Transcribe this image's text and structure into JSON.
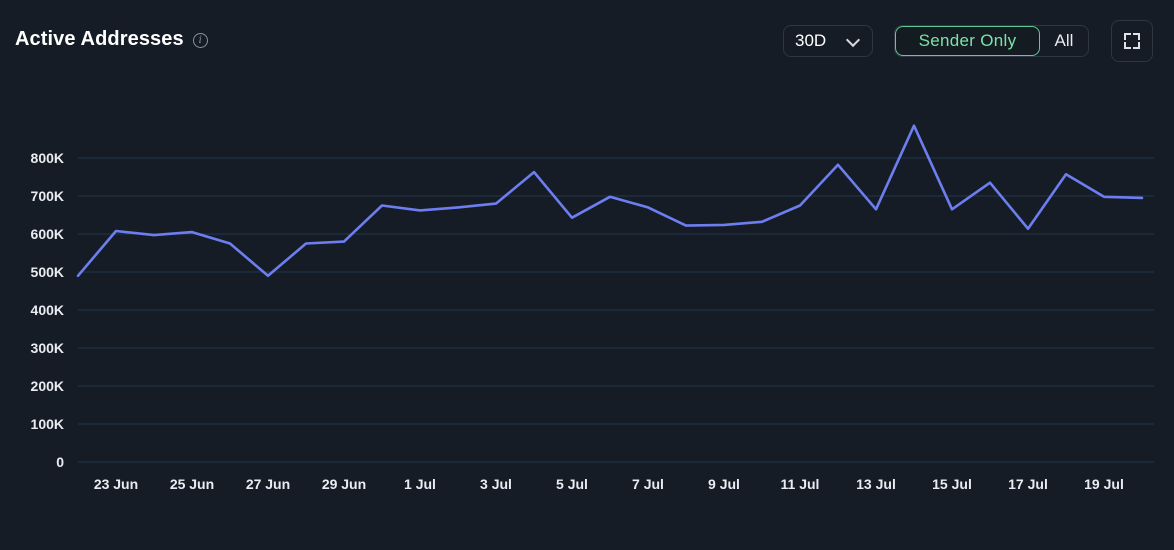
{
  "header": {
    "title": "Active Addresses",
    "info_icon": "info-icon",
    "period": "30D",
    "toggle_options": [
      "Sender Only",
      "All"
    ],
    "active_toggle": "Sender Only",
    "fullscreen_icon": "fullscreen-icon"
  },
  "colors": {
    "background": "#161c26",
    "line": "#6c7ef0",
    "grid": "#22364a",
    "active_toggle": "#62c895"
  },
  "chart_data": {
    "type": "line",
    "title": "Active Addresses",
    "xlabel": "",
    "ylabel": "",
    "ylim": [
      0,
      800000
    ],
    "yticks": [
      0,
      100000,
      200000,
      300000,
      400000,
      500000,
      600000,
      700000,
      800000
    ],
    "ytick_labels": [
      "0",
      "100K",
      "200K",
      "300K",
      "400K",
      "500K",
      "600K",
      "700K",
      "800K"
    ],
    "xtick_labels": [
      "23 Jun",
      "25 Jun",
      "27 Jun",
      "29 Jun",
      "1 Jul",
      "3 Jul",
      "5 Jul",
      "7 Jul",
      "9 Jul",
      "11 Jul",
      "13 Jul",
      "15 Jul",
      "17 Jul",
      "19 Jul"
    ],
    "grid": true,
    "x": [
      "22 Jun",
      "23 Jun",
      "24 Jun",
      "25 Jun",
      "26 Jun",
      "27 Jun",
      "28 Jun",
      "29 Jun",
      "30 Jun",
      "1 Jul",
      "2 Jul",
      "3 Jul",
      "4 Jul",
      "5 Jul",
      "6 Jul",
      "7 Jul",
      "8 Jul",
      "9 Jul",
      "10 Jul",
      "11 Jul",
      "12 Jul",
      "13 Jul",
      "14 Jul",
      "15 Jul",
      "16 Jul",
      "17 Jul",
      "18 Jul",
      "19 Jul",
      "20 Jul"
    ],
    "series": [
      {
        "values": [
          490000,
          608000,
          597000,
          605000,
          575000,
          490000,
          575000,
          580000,
          675000,
          662000,
          670000,
          680000,
          763000,
          643000,
          698000,
          670000,
          622000,
          624000,
          632000,
          675000,
          782000,
          665000,
          885000,
          665000,
          735000,
          614000,
          757000,
          698000,
          695000
        ]
      }
    ]
  }
}
